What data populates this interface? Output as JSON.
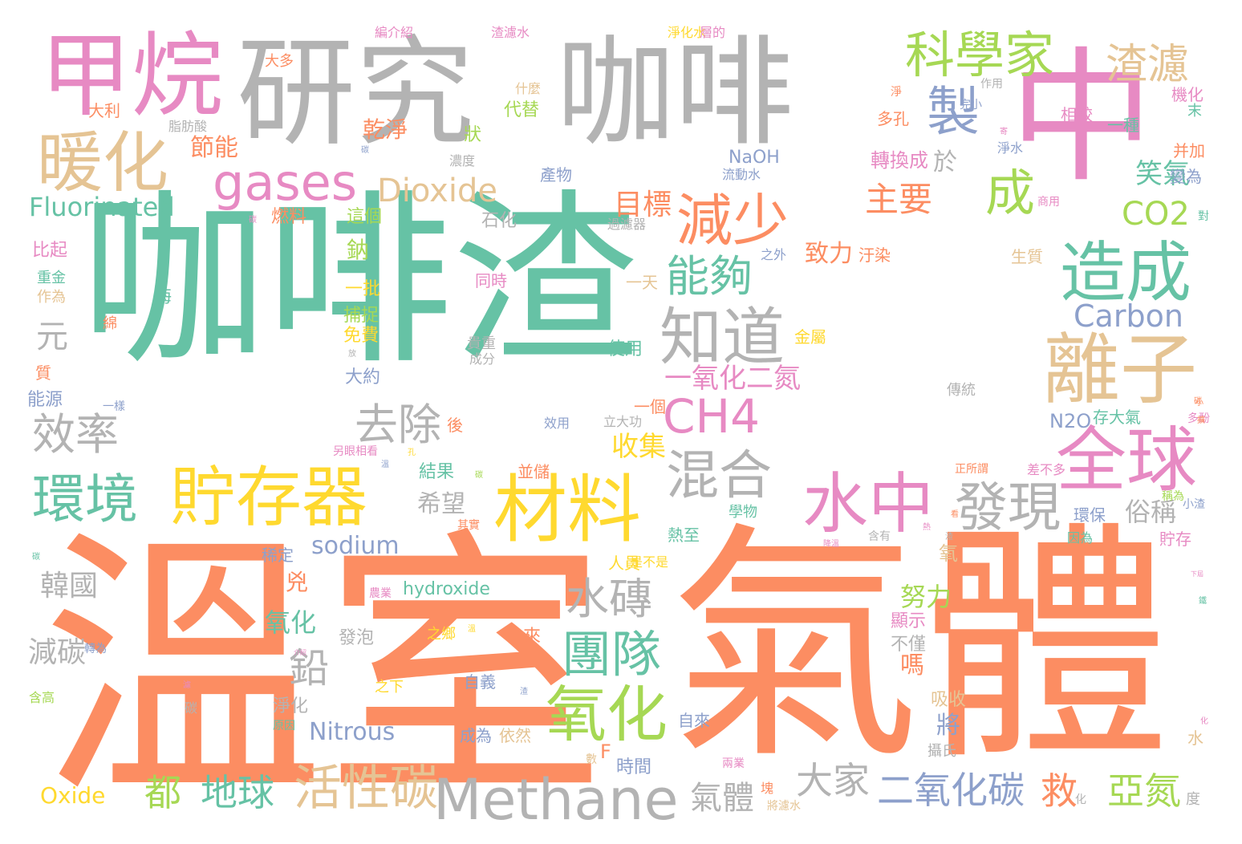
{
  "palette": {
    "green": "#66c2a5",
    "orange": "#fc8d62",
    "blue": "#8da0cb",
    "pink": "#e78ac3",
    "lime": "#a6d854",
    "yellow": "#ffd92f",
    "tan": "#e5c494",
    "gray": "#b3b3b3"
  },
  "words": [
    {
      "text": "咖啡渣",
      "color": "green"
    },
    {
      "text": "溫室",
      "color": "orange"
    },
    {
      "text": "氣體",
      "color": "orange"
    },
    {
      "text": "研究",
      "color": "gray"
    },
    {
      "text": "咖啡",
      "color": "gray"
    },
    {
      "text": "中",
      "color": "pink"
    },
    {
      "text": "甲烷",
      "color": "pink"
    },
    {
      "text": "Methane",
      "color": "gray"
    },
    {
      "text": "貯存器",
      "color": "yellow"
    },
    {
      "text": "材料",
      "color": "yellow"
    },
    {
      "text": "離子",
      "color": "tan"
    },
    {
      "text": "水中",
      "color": "pink"
    },
    {
      "text": "全球",
      "color": "pink"
    },
    {
      "text": "暖化",
      "color": "tan"
    },
    {
      "text": "科學家",
      "color": "lime"
    },
    {
      "text": "造成",
      "color": "green"
    },
    {
      "text": "知道",
      "color": "gray"
    },
    {
      "text": "減少",
      "color": "orange"
    },
    {
      "text": "CH4",
      "color": "pink"
    },
    {
      "text": "環境",
      "color": "green"
    },
    {
      "text": "氧化",
      "color": "lime"
    },
    {
      "text": "混合",
      "color": "gray"
    },
    {
      "text": "發現",
      "color": "gray"
    },
    {
      "text": "團隊",
      "color": "green"
    },
    {
      "text": "gases",
      "color": "pink"
    },
    {
      "text": "製",
      "color": "blue"
    },
    {
      "text": "成",
      "color": "lime"
    },
    {
      "text": "渣濾",
      "color": "tan"
    },
    {
      "text": "效率",
      "color": "gray"
    },
    {
      "text": "去除",
      "color": "gray"
    },
    {
      "text": "活性碳",
      "color": "tan"
    },
    {
      "text": "二氧化碳",
      "color": "blue"
    },
    {
      "text": "水磚",
      "color": "gray"
    },
    {
      "text": "能夠",
      "color": "green"
    },
    {
      "text": "Dioxide",
      "color": "tan"
    },
    {
      "text": "Fluorinated",
      "color": "green"
    },
    {
      "text": "Carbon",
      "color": "blue"
    },
    {
      "text": "CO2",
      "color": "lime"
    },
    {
      "text": "主要",
      "color": "orange"
    },
    {
      "text": "目標",
      "color": "orange"
    },
    {
      "text": "地球",
      "color": "green"
    },
    {
      "text": "都",
      "color": "lime"
    },
    {
      "text": "大家",
      "color": "gray"
    },
    {
      "text": "氣體",
      "color": "gray"
    },
    {
      "text": "亞氮",
      "color": "lime"
    },
    {
      "text": "救",
      "color": "orange"
    },
    {
      "text": "鉛",
      "color": "gray"
    },
    {
      "text": "元",
      "color": "gray"
    },
    {
      "text": "一氧化二氮",
      "color": "pink"
    },
    {
      "text": "笑氣",
      "color": "green"
    },
    {
      "text": "節能",
      "color": "orange"
    },
    {
      "text": "乾淨",
      "color": "orange"
    },
    {
      "text": "sodium",
      "color": "blue"
    },
    {
      "text": "hydroxide",
      "color": "green"
    },
    {
      "text": "Nitrous",
      "color": "blue"
    },
    {
      "text": "Oxide",
      "color": "yellow"
    },
    {
      "text": "N2O",
      "color": "blue"
    },
    {
      "text": "NaOH",
      "color": "blue"
    },
    {
      "text": "韓國",
      "color": "gray"
    },
    {
      "text": "減碳",
      "color": "gray"
    },
    {
      "text": "努力",
      "color": "lime"
    },
    {
      "text": "收集",
      "color": "yellow"
    },
    {
      "text": "希望",
      "color": "gray"
    },
    {
      "text": "致力",
      "color": "orange"
    },
    {
      "text": "俗稱",
      "color": "gray"
    },
    {
      "text": "於",
      "color": "gray"
    },
    {
      "text": "轉換成",
      "color": "pink"
    },
    {
      "text": "燃料",
      "color": "orange"
    },
    {
      "text": "這個",
      "color": "lime"
    },
    {
      "text": "鈉",
      "color": "lime"
    },
    {
      "text": "氧化",
      "color": "green"
    },
    {
      "text": "嗎",
      "color": "orange"
    },
    {
      "text": "將",
      "color": "blue"
    },
    {
      "text": "一天",
      "color": "tan"
    },
    {
      "text": "一批",
      "color": "yellow"
    },
    {
      "text": "捕捉",
      "color": "lime"
    },
    {
      "text": "免費",
      "color": "yellow"
    },
    {
      "text": "石化",
      "color": "gray"
    },
    {
      "text": "代替",
      "color": "lime"
    },
    {
      "text": "使用",
      "color": "green"
    },
    {
      "text": "時間",
      "color": "blue"
    },
    {
      "text": "發泡",
      "color": "gray"
    },
    {
      "text": "成為",
      "color": "blue"
    },
    {
      "text": "依然",
      "color": "tan"
    },
    {
      "text": "自來",
      "color": "blue"
    },
    {
      "text": "淨化",
      "color": "gray"
    },
    {
      "text": "吸收",
      "color": "tan"
    },
    {
      "text": "顯示",
      "color": "pink"
    },
    {
      "text": "不僅",
      "color": "gray"
    },
    {
      "text": "熱至",
      "color": "green"
    },
    {
      "text": "人員",
      "color": "yellow"
    },
    {
      "text": "結果",
      "color": "green"
    },
    {
      "text": "大約",
      "color": "blue"
    },
    {
      "text": "稀定",
      "color": "blue"
    },
    {
      "text": "重金",
      "color": "green"
    },
    {
      "text": "作為",
      "color": "tan"
    },
    {
      "text": "能源",
      "color": "blue"
    },
    {
      "text": "比起",
      "color": "pink"
    },
    {
      "text": "大多",
      "color": "orange"
    },
    {
      "text": "大利",
      "color": "orange"
    },
    {
      "text": "產物",
      "color": "blue"
    },
    {
      "text": "濃度",
      "color": "gray"
    },
    {
      "text": "相較",
      "color": "pink"
    },
    {
      "text": "一種",
      "color": "green"
    },
    {
      "text": "多孔",
      "color": "orange"
    },
    {
      "text": "淨水",
      "color": "blue"
    },
    {
      "text": "生質",
      "color": "tan"
    },
    {
      "text": "環保",
      "color": "blue"
    },
    {
      "text": "貯存",
      "color": "pink"
    },
    {
      "text": "因為",
      "color": "green"
    },
    {
      "text": "作用",
      "color": "gray"
    },
    {
      "text": "并加",
      "color": "orange"
    },
    {
      "text": "變為",
      "color": "blue"
    },
    {
      "text": "機化",
      "color": "pink"
    },
    {
      "text": "稱為",
      "color": "lime"
    },
    {
      "text": "渣濾水",
      "color": "pink"
    },
    {
      "text": "編介紹",
      "color": "pink"
    },
    {
      "text": "淨化水",
      "color": "yellow"
    },
    {
      "text": "層的",
      "color": "pink"
    },
    {
      "text": "另眼相看",
      "color": "pink"
    },
    {
      "text": "之鄉",
      "color": "yellow"
    },
    {
      "text": "來",
      "color": "orange"
    },
    {
      "text": "海",
      "color": "green"
    },
    {
      "text": "綿",
      "color": "orange"
    },
    {
      "text": "質",
      "color": "orange"
    },
    {
      "text": "含高",
      "color": "lime"
    },
    {
      "text": "碳",
      "color": "gray"
    },
    {
      "text": "之下",
      "color": "yellow"
    },
    {
      "text": "自義",
      "color": "blue"
    },
    {
      "text": "F",
      "color": "orange"
    },
    {
      "text": "後",
      "color": "orange"
    },
    {
      "text": "一樣",
      "color": "blue"
    },
    {
      "text": "一個",
      "color": "orange"
    },
    {
      "text": "立大功",
      "color": "gray"
    },
    {
      "text": "效用",
      "color": "blue"
    },
    {
      "text": "並儲",
      "color": "orange"
    },
    {
      "text": "傳統",
      "color": "gray"
    },
    {
      "text": "存大氣",
      "color": "green"
    },
    {
      "text": "同時",
      "color": "pink"
    },
    {
      "text": "汙染",
      "color": "orange"
    },
    {
      "text": "之外",
      "color": "blue"
    },
    {
      "text": "金屬",
      "color": "yellow"
    },
    {
      "text": "過濾器",
      "color": "gray"
    },
    {
      "text": "流動水",
      "color": "blue"
    },
    {
      "text": "脂肪酸",
      "color": "gray"
    },
    {
      "text": "什麼",
      "color": "tan"
    },
    {
      "text": "狀",
      "color": "lime"
    },
    {
      "text": "兇",
      "color": "orange"
    },
    {
      "text": "氧",
      "color": "tan"
    },
    {
      "text": "成分",
      "color": "gray"
    },
    {
      "text": "貴重",
      "color": "gray"
    },
    {
      "text": "學物",
      "color": "green"
    },
    {
      "text": "差不多",
      "color": "pink"
    },
    {
      "text": "正所謂",
      "color": "orange"
    },
    {
      "text": "是不是",
      "color": "yellow"
    },
    {
      "text": "轉為",
      "color": "blue"
    },
    {
      "text": "攝氏",
      "color": "gray"
    },
    {
      "text": "水",
      "color": "tan"
    },
    {
      "text": "度",
      "color": "gray"
    },
    {
      "text": "商用",
      "color": "pink"
    },
    {
      "text": "對",
      "color": "green"
    },
    {
      "text": "兩業",
      "color": "pink"
    },
    {
      "text": "將濾水",
      "color": "tan"
    },
    {
      "text": "塊",
      "color": "orange"
    },
    {
      "text": "數",
      "color": "tan"
    },
    {
      "text": "化",
      "color": "gray"
    },
    {
      "text": "其實",
      "color": "orange"
    },
    {
      "text": "含有",
      "color": "gray"
    },
    {
      "text": "小渣",
      "color": "blue"
    },
    {
      "text": "多酚",
      "color": "pink"
    },
    {
      "text": "末",
      "color": "green"
    },
    {
      "text": "淨",
      "color": "orange"
    },
    {
      "text": "完小",
      "color": "blue"
    },
    {
      "text": "介紹",
      "color": "pink"
    },
    {
      "text": "農業",
      "color": "pink"
    },
    {
      "text": "原因",
      "color": "green"
    },
    {
      "text": "下屆",
      "color": "pink"
    },
    {
      "text": "鐵",
      "color": "green"
    },
    {
      "text": "碳",
      "color": "orange"
    },
    {
      "text": "寄",
      "color": "pink"
    },
    {
      "text": "看",
      "color": "orange"
    },
    {
      "text": "小",
      "color": "orange"
    },
    {
      "text": "碳",
      "color": "blue"
    },
    {
      "text": "碳",
      "color": "pink"
    },
    {
      "text": "放",
      "color": "gray"
    },
    {
      "text": "降溫",
      "color": "pink"
    },
    {
      "text": "碳",
      "color": "green"
    },
    {
      "text": "擴",
      "color": "orange"
    },
    {
      "text": "溫",
      "color": "yellow"
    },
    {
      "text": "濾",
      "color": "pink"
    },
    {
      "text": "碳",
      "color": "lime"
    },
    {
      "text": "渣",
      "color": "blue"
    },
    {
      "text": "化",
      "color": "pink"
    },
    {
      "text": "孔",
      "color": "yellow"
    },
    {
      "text": "渣",
      "color": "gray"
    },
    {
      "text": "熱",
      "color": "pink"
    },
    {
      "text": "溫",
      "color": "blue"
    }
  ]
}
